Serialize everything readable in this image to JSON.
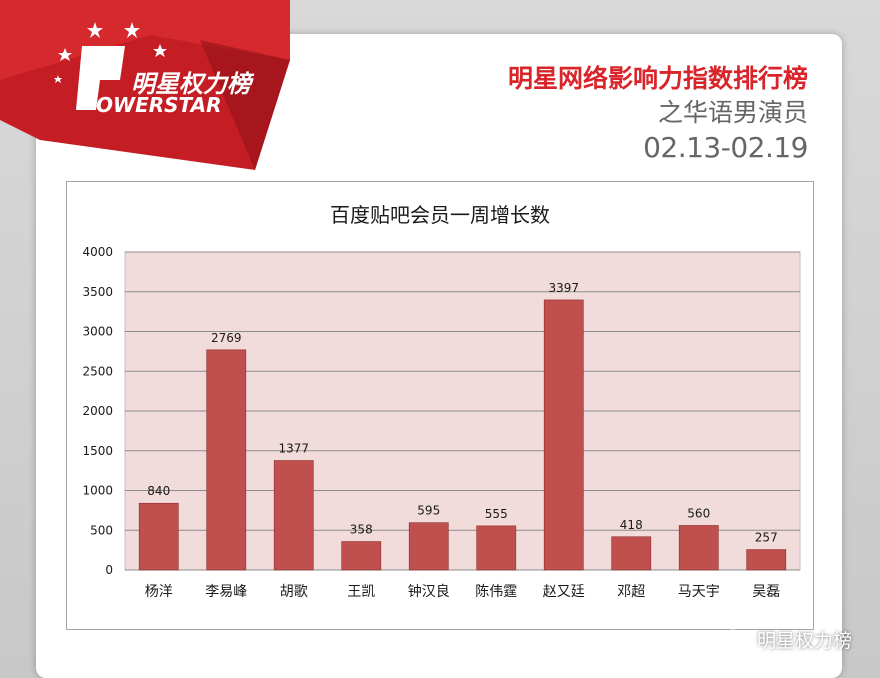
{
  "brand": {
    "logo_cn": "明星权力榜",
    "logo_en": "OWERSTAR"
  },
  "header": {
    "title": "明星网络影响力指数排行榜",
    "subtitle": "之华语男演员",
    "date_range": "02.13-02.19"
  },
  "footer": {
    "wechat_name": "明星权力榜"
  },
  "colors": {
    "brand_red": "#d9252a",
    "bar": "#c0504d",
    "plot_bg": "#f2dcdb"
  },
  "chart_data": {
    "type": "bar",
    "title": "百度贴吧会员一周增长数",
    "categories": [
      "杨洋",
      "李易峰",
      "胡歌",
      "王凯",
      "钟汉良",
      "陈伟霆",
      "赵又廷",
      "邓超",
      "马天宇",
      "吴磊"
    ],
    "values": [
      840,
      2769,
      1377,
      358,
      595,
      555,
      3397,
      418,
      560,
      257
    ],
    "ylim": [
      0,
      4000
    ],
    "yticks": [
      0,
      500,
      1000,
      1500,
      2000,
      2500,
      3000,
      3500,
      4000
    ],
    "grid": true,
    "data_labels": true
  }
}
